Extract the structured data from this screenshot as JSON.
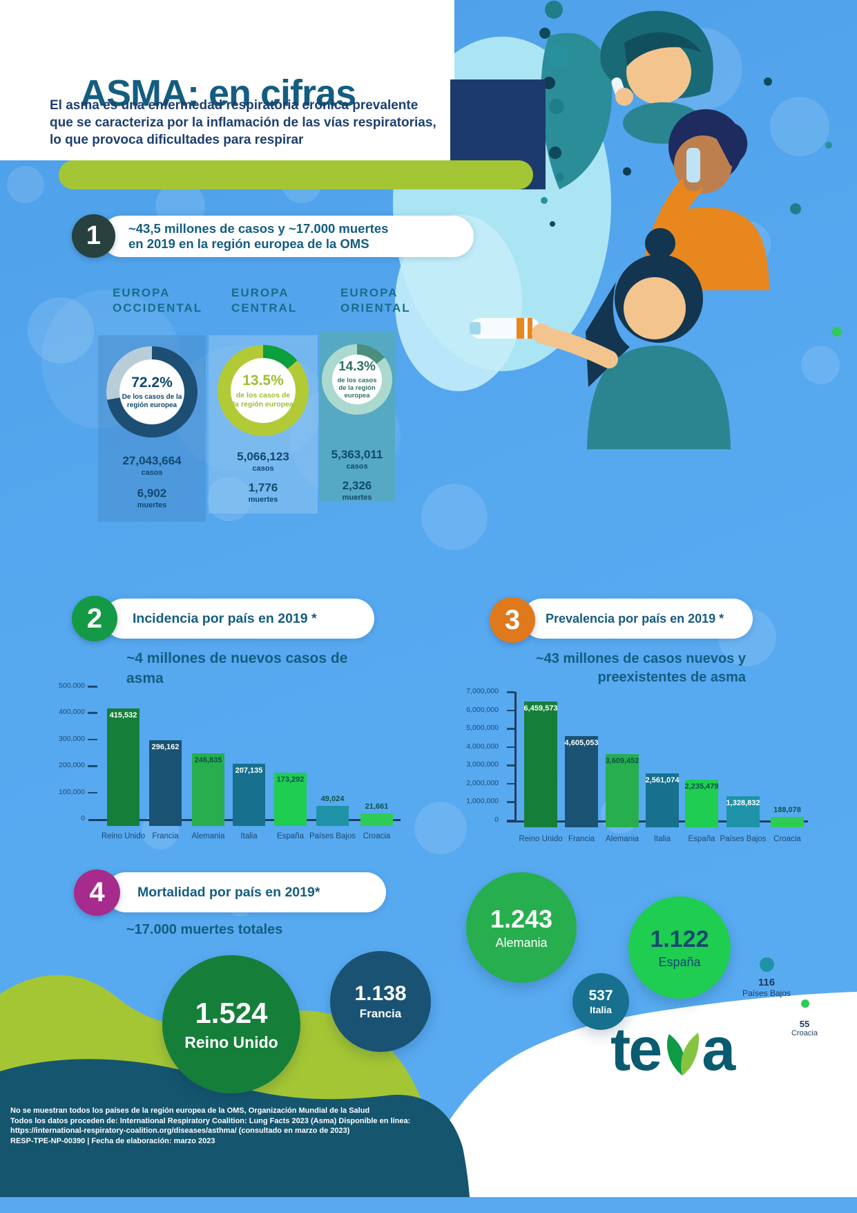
{
  "page": {
    "title": "ASMA: en cifras",
    "subtitle_lines": [
      "El asma es una enfermedad respiratoria crónica prevalente",
      "que se caracteriza por la inflamación de las vías respiratorias,",
      "lo que provoca dificultades para respirar"
    ]
  },
  "colors": {
    "page_blue": "#56a8ef",
    "lime_green": "#a4c634",
    "dark_teal_title": "#135d80",
    "navy_block": "#1d3a6e",
    "section1_circle": "#27413e",
    "section2_circle": "#149a46",
    "section3_circle": "#e0791b",
    "section4_circle": "#a62b8c",
    "footer_teal_wave": "#15566e",
    "logo_color": "#0a5b70"
  },
  "section1": {
    "number": "1",
    "heading_line1": "~43,5 millones de casos y ~17.000 muertes",
    "heading_line2": "en 2019 en la región europea de la OMS",
    "regions": [
      {
        "name_line1": "EUROPA",
        "name_line2": "OCCIDENTAL",
        "pct_label": "72.2%",
        "pct_value": 72.2,
        "desc": "De los casos de la región europea",
        "cases": "27,043,664",
        "cases_unit": "casos",
        "deaths": "6,902",
        "deaths_unit": "muertes",
        "arc_color": "#1d4e74",
        "rest_color": "#b9cdd9"
      },
      {
        "name_line1": "EUROPA",
        "name_line2": "CENTRAL",
        "pct_label": "13.5%",
        "pct_value": 13.5,
        "desc": "de los casos de la región europea",
        "cases": "5,066,123",
        "cases_unit": "casos",
        "deaths": "1,776",
        "deaths_unit": "muertes",
        "arc_color": "#0c9f3e",
        "rest_color": "#b2ca35"
      },
      {
        "name_line1": "EUROPA",
        "name_line2": "ORIENTAL",
        "pct_label": "14.3%",
        "pct_value": 14.3,
        "desc": "de los casos de la región europea",
        "cases": "5,363,011",
        "cases_unit": "casos",
        "deaths": "2,326",
        "deaths_unit": "muertes",
        "arc_color": "#4b8e7e",
        "rest_color": "#abd9cf"
      }
    ]
  },
  "section2": {
    "number": "2",
    "heading": "Incidencia por país en 2019 *",
    "subtitle_lines": [
      "~4 millones de nuevos casos de",
      "asma"
    ]
  },
  "section3": {
    "number": "3",
    "heading": "Prevalencia por país en 2019 *",
    "subtitle_lines": [
      "~43 millones de casos nuevos y",
      "preexistentes de asma"
    ]
  },
  "section4": {
    "number": "4",
    "heading": "Mortalidad por país en 2019*",
    "subtitle": "~17.000 muertes totales",
    "bubbles": [
      {
        "country": "Reino Unido",
        "value": "1.524"
      },
      {
        "country": "Francia",
        "value": "1.138"
      },
      {
        "country": "Alemania",
        "value": "1.243"
      },
      {
        "country": "Italia",
        "value": "537"
      },
      {
        "country": "España",
        "value": "1.122"
      },
      {
        "country": "Países Bajos",
        "value": "116"
      },
      {
        "country": "Croacia",
        "value": "55"
      }
    ]
  },
  "footer": {
    "lines": [
      "No se muestran todos los países de la región europea de la OMS, Organización Mundial de la Salud",
      "Todos los datos proceden de: International Respiratory Coalition: Lung Facts 2023 (Asma) Disponible en línea:",
      "https://international-respiratory-coalition.org/diseases/asthma/ (consultado en marzo de 2023)",
      "RESP-TPE-NP-00390 | Fecha de elaboración: marzo 2023"
    ],
    "logo_text_left": "te",
    "logo_text_right": "a"
  },
  "chart_data": [
    {
      "id": "regions-donuts",
      "type": "pie",
      "title": "~43,5 millones de casos y ~17.000 muertes en 2019 en la región europea de la OMS",
      "categories": [
        "Europa Occidental",
        "Europa Central",
        "Europa Oriental"
      ],
      "values": [
        72.2,
        13.5,
        14.3
      ],
      "unit": "% de los casos de la región europea",
      "cases": [
        27043664,
        5066123,
        5363011
      ],
      "deaths": [
        6902,
        1776,
        2326
      ]
    },
    {
      "id": "incidence",
      "type": "bar",
      "title": "Incidencia por país en 2019 *",
      "subtitle": "~4 millones de nuevos casos de asma",
      "categories": [
        "Reino Unido",
        "Francia",
        "Alemania",
        "Italia",
        "España",
        "Países Bajos",
        "Croacia"
      ],
      "values": [
        415532,
        296162,
        246835,
        207135,
        173292,
        49024,
        21661
      ],
      "value_labels": [
        "415,532",
        "296,162",
        "246,835",
        "207,135",
        "173,292",
        "49,024",
        "21,661"
      ],
      "bar_colors": [
        "#157f39",
        "#1a5273",
        "#27ae4e",
        "#16708e",
        "#1fcd51",
        "#1e93a8",
        "#2ecc54"
      ],
      "label_modes": [
        "light",
        "light",
        "dark",
        "light",
        "dark",
        "dark",
        "dark"
      ],
      "ylim": [
        0,
        500000
      ],
      "yticks_top_down": [
        "500,000",
        "400,000",
        "300,000",
        "200,000",
        "100,000",
        "0"
      ],
      "xlabel": "",
      "ylabel": "",
      "legend": "none",
      "grid": false
    },
    {
      "id": "prevalence",
      "type": "bar",
      "title": "Prevalencia por país en 2019 *",
      "subtitle": "~43 millones de casos nuevos y preexistentes de asma",
      "categories": [
        "Reino Unido",
        "Francia",
        "Alemania",
        "Italia",
        "España",
        "Países Bajos",
        "Croacia"
      ],
      "values": [
        6459573,
        4605053,
        3609452,
        2561074,
        2235479,
        1328832,
        188078
      ],
      "value_labels": [
        "6,459,573",
        "4,605,053",
        "3,609,452",
        "2,561,074",
        "2,235,479",
        "1,328,832",
        "188,078"
      ],
      "bar_colors": [
        "#157f39",
        "#1a5273",
        "#27ae4e",
        "#16708e",
        "#1fcd51",
        "#1e93a8",
        "#2ecc54"
      ],
      "label_modes": [
        "light",
        "light",
        "dark",
        "light",
        "dark",
        "light",
        "dark"
      ],
      "ylim": [
        0,
        7000000
      ],
      "yticks_top_down": [
        "7,000,000",
        "6,000,000",
        "5,000,000",
        "4,000,000",
        "3,000,000",
        "2,000,000",
        "1,000,000",
        "0"
      ],
      "xlabel": "",
      "ylabel": "",
      "legend": "none",
      "grid": false
    },
    {
      "id": "mortality",
      "type": "scatter",
      "variant": "bubble",
      "title": "Mortalidad por país en 2019*",
      "subtitle": "~17.000 muertes totales",
      "categories": [
        "Reino Unido",
        "Francia",
        "Alemania",
        "Italia",
        "España",
        "Países Bajos",
        "Croacia"
      ],
      "values": [
        1524,
        1138,
        1243,
        537,
        1122,
        116,
        55
      ],
      "value_labels": [
        "1.524",
        "1.138",
        "1.243",
        "537",
        "1.122",
        "116",
        "55"
      ]
    }
  ]
}
